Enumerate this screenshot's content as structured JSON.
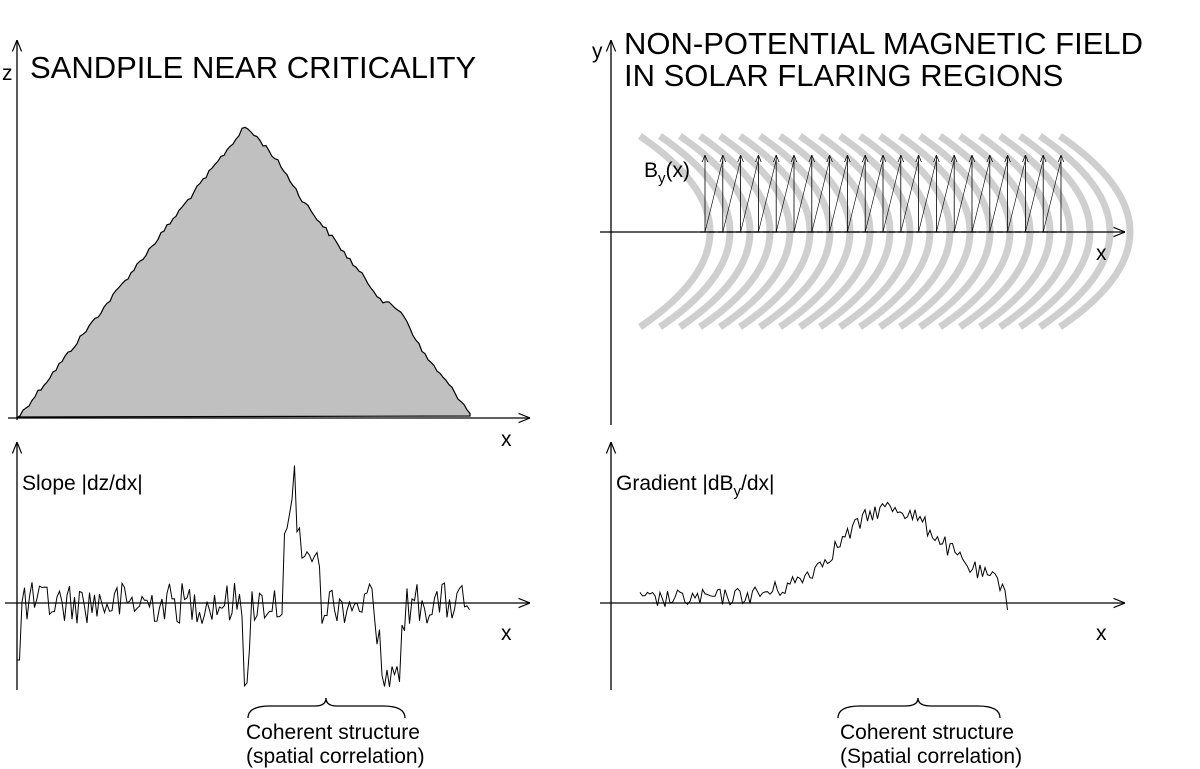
{
  "left": {
    "title": "SANDPILE NEAR CRITICALITY",
    "top_axis_y": "z",
    "top_axis_x": "x",
    "bottom_label": "Slope |dz/dx|",
    "bottom_axis_x": "x",
    "bracket_label": [
      "Coherent structure",
      "(spatial correlation)"
    ]
  },
  "right": {
    "title": [
      "NON-POTENTIAL MAGNETIC FIELD",
      "IN SOLAR FLARING REGIONS"
    ],
    "top_axis_y": "y",
    "top_axis_x": "x",
    "field_label": {
      "main": "B",
      "sub": "y",
      "rest": "(x)"
    },
    "bottom_label": {
      "main": "Gradient |dB",
      "sub": "y",
      "rest": "/dx|"
    },
    "bottom_axis_x": "x",
    "bracket_label": [
      "Coherent structure",
      "(Spatial correlation)"
    ]
  }
}
